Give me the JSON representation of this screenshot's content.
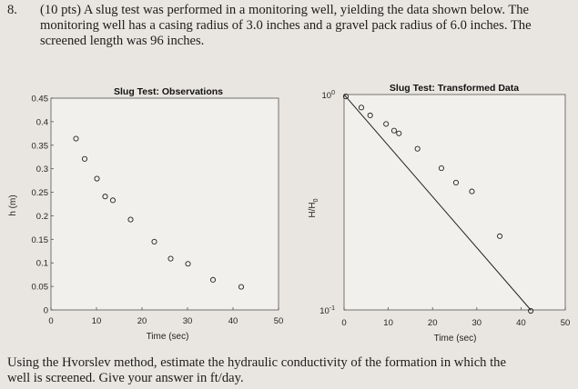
{
  "problem": {
    "number": "8.",
    "lines": [
      "(10 pts) A slug test was performed in a monitoring well, yielding the data shown below. The",
      "monitoring well has a casing radius of 3.0 inches and a gravel pack radius of 6.0 inches. The",
      "screened length was 96 inches."
    ]
  },
  "question": {
    "lines": [
      "Using the Hvorslev method, estimate the hydraulic conductivity of the formation in which the",
      "well is screened. Give your answer in ft/day."
    ]
  },
  "chart_data": [
    {
      "type": "scatter",
      "title": "Slug Test: Observations",
      "xlabel": "Time (sec)",
      "ylabel": "h (m)",
      "xlim": [
        0,
        50
      ],
      "ylim": [
        0,
        0.45
      ],
      "xticks": [
        "0",
        "10",
        "20",
        "30",
        "40",
        "50"
      ],
      "yticks": [
        "0",
        "0.05",
        "0.1",
        "0.15",
        "0.2",
        "0.25",
        "0.3",
        "0.35",
        "0.4",
        "0.45"
      ],
      "grid": false,
      "x": [
        5.5,
        7.4,
        10.1,
        11.9,
        13.6,
        17.5,
        22.7,
        26.3,
        30.1,
        35.6,
        41.8
      ],
      "y": [
        0.364,
        0.321,
        0.279,
        0.241,
        0.233,
        0.192,
        0.145,
        0.109,
        0.098,
        0.064,
        0.049
      ]
    },
    {
      "type": "line",
      "title": "Slug Test: Transformed Data",
      "xlabel": "Time (sec)",
      "ylabel": "H/H",
      "ylabel_sub": "0",
      "xlim": [
        0,
        50
      ],
      "ylim": [
        0.1,
        1
      ],
      "yscale": "log",
      "xticks": [
        "0",
        "10",
        "20",
        "30",
        "40",
        "50"
      ],
      "yticks": [
        "10",
        "10"
      ],
      "ytick_exponents": [
        "0",
        "-1"
      ],
      "grid": false,
      "markers": {
        "x": [
          0.4,
          3.9,
          5.9,
          9.5,
          11.3,
          12.4,
          16.6,
          22.0,
          25.3,
          28.9,
          35.2,
          42.2
        ],
        "y": [
          0.98,
          0.87,
          0.8,
          0.73,
          0.68,
          0.66,
          0.56,
          0.455,
          0.39,
          0.355,
          0.22,
          0.099
        ]
      },
      "fit_line": {
        "x": [
          0,
          42.2
        ],
        "y": [
          1.0,
          0.1
        ]
      }
    }
  ]
}
